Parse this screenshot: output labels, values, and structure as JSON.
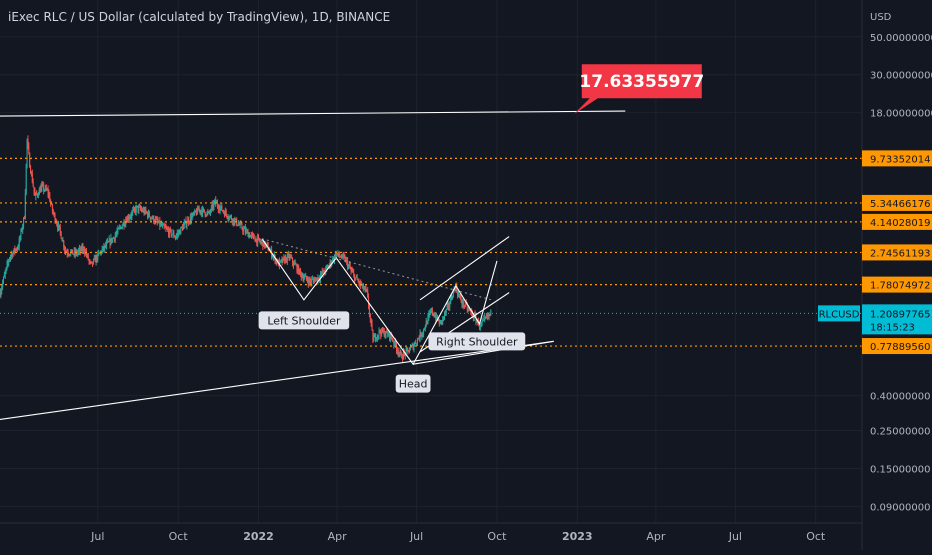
{
  "header": {
    "title": "iExec RLC / US Dollar (calculated by TradingView), 1D, BINANCE"
  },
  "colors": {
    "background": "#131722",
    "grid": "#1e222d",
    "up": "#26a69a",
    "down": "#ef5350",
    "level": "#ff9800",
    "trendline": "#ffffff",
    "callout": "#f23645",
    "price_tag": "#00bcd4",
    "axis_text": "#b2b5be"
  },
  "chart_data": {
    "type": "candlestick",
    "symbol": "RLCUSD",
    "timeframe": "1D",
    "exchange": "BINANCE",
    "y_scale": "log",
    "y_range": [
      0.072,
      82
    ],
    "y_axis_unit": "USD",
    "x_range": [
      "2021-03-11",
      "2023-11-23"
    ],
    "x_ticks": [
      {
        "date": "2021-07-01",
        "label": "Jul",
        "bold": false
      },
      {
        "date": "2021-10-01",
        "label": "Oct",
        "bold": false
      },
      {
        "date": "2022-01-01",
        "label": "2022",
        "bold": true
      },
      {
        "date": "2022-04-01",
        "label": "Apr",
        "bold": false
      },
      {
        "date": "2022-07-01",
        "label": "Jul",
        "bold": false
      },
      {
        "date": "2022-10-01",
        "label": "Oct",
        "bold": false
      },
      {
        "date": "2023-01-01",
        "label": "2023",
        "bold": true
      },
      {
        "date": "2023-04-01",
        "label": "Apr",
        "bold": false
      },
      {
        "date": "2023-07-01",
        "label": "Jul",
        "bold": false
      },
      {
        "date": "2023-10-01",
        "label": "Oct",
        "bold": false
      }
    ],
    "y_ticks": [
      {
        "value": 50,
        "label": "50.00000000"
      },
      {
        "value": 30,
        "label": "30.00000000"
      },
      {
        "value": 18,
        "label": "18.00000000"
      },
      {
        "value": 0.4,
        "label": "0.40000000"
      },
      {
        "value": 0.25,
        "label": "0.25000000"
      },
      {
        "value": 0.15,
        "label": "0.15000000"
      },
      {
        "value": 0.09,
        "label": "0.09000000"
      }
    ],
    "levels": [
      {
        "value": 9.73352014,
        "label": "9.73352014"
      },
      {
        "value": 5.34466176,
        "label": "5.34466176"
      },
      {
        "value": 4.14028019,
        "label": "4.14028019"
      },
      {
        "value": 2.74561193,
        "label": "2.74561193"
      },
      {
        "value": 1.78074972,
        "label": "1.78074972"
      },
      {
        "value": 0.7788956,
        "label": "0.77889560"
      }
    ],
    "current_price": {
      "symbol": "RLCUSD",
      "value": 1.20897765,
      "label": "1.20897765",
      "countdown": "18:15:23"
    },
    "price_path": [
      [
        "2021-03-11",
        1.6
      ],
      [
        "2021-03-22",
        2.6
      ],
      [
        "2021-04-01",
        3.0
      ],
      [
        "2021-04-08",
        4.5
      ],
      [
        "2021-04-11",
        12.5
      ],
      [
        "2021-04-14",
        9.0
      ],
      [
        "2021-04-20",
        5.8
      ],
      [
        "2021-04-28",
        6.6
      ],
      [
        "2021-05-05",
        6.2
      ],
      [
        "2021-05-10",
        4.8
      ],
      [
        "2021-05-19",
        3.6
      ],
      [
        "2021-05-25",
        2.8
      ],
      [
        "2021-06-05",
        2.7
      ],
      [
        "2021-06-15",
        2.9
      ],
      [
        "2021-06-23",
        2.3
      ],
      [
        "2021-07-05",
        2.8
      ],
      [
        "2021-07-20",
        3.4
      ],
      [
        "2021-08-01",
        4.2
      ],
      [
        "2021-08-15",
        5.0
      ],
      [
        "2021-08-25",
        4.7
      ],
      [
        "2021-09-05",
        4.2
      ],
      [
        "2021-09-15",
        3.8
      ],
      [
        "2021-09-28",
        3.4
      ],
      [
        "2021-10-10",
        4.1
      ],
      [
        "2021-10-25",
        4.9
      ],
      [
        "2021-11-05",
        4.6
      ],
      [
        "2021-11-12",
        5.4
      ],
      [
        "2021-11-25",
        4.6
      ],
      [
        "2021-12-05",
        4.2
      ],
      [
        "2021-12-18",
        3.6
      ],
      [
        "2021-12-28",
        3.3
      ],
      [
        "2022-01-10",
        3.0
      ],
      [
        "2022-01-24",
        2.35
      ],
      [
        "2022-02-05",
        2.6
      ],
      [
        "2022-02-20",
        2.0
      ],
      [
        "2022-03-01",
        1.85
      ],
      [
        "2022-03-10",
        1.95
      ],
      [
        "2022-03-20",
        2.2
      ],
      [
        "2022-03-31",
        2.7
      ],
      [
        "2022-04-10",
        2.5
      ],
      [
        "2022-04-20",
        2.0
      ],
      [
        "2022-05-05",
        1.6
      ],
      [
        "2022-05-12",
        0.85
      ],
      [
        "2022-05-20",
        0.95
      ],
      [
        "2022-06-01",
        0.9
      ],
      [
        "2022-06-13",
        0.68
      ],
      [
        "2022-06-20",
        0.72
      ],
      [
        "2022-06-27",
        0.78
      ],
      [
        "2022-07-08",
        0.95
      ],
      [
        "2022-07-18",
        1.25
      ],
      [
        "2022-07-28",
        1.05
      ],
      [
        "2022-08-07",
        1.35
      ],
      [
        "2022-08-14",
        1.75
      ],
      [
        "2022-08-20",
        1.45
      ],
      [
        "2022-08-27",
        1.32
      ],
      [
        "2022-09-05",
        1.15
      ],
      [
        "2022-09-12",
        1.02
      ],
      [
        "2022-09-18",
        1.12
      ],
      [
        "2022-09-24",
        1.21
      ]
    ],
    "candle_count": 560,
    "candle_width_days": 1,
    "annotations": [
      {
        "kind": "callout",
        "text": "17.63355977",
        "value": 17.63355977,
        "date": "2022-12-28"
      },
      {
        "kind": "label",
        "text": "Left Shoulder"
      },
      {
        "kind": "label",
        "text": "Head"
      },
      {
        "kind": "label",
        "text": "Right Shoulder"
      }
    ],
    "trendlines": [
      {
        "name": "resistance",
        "from": [
          "2021-03-11",
          17.2
        ],
        "to": [
          "2023-02-25",
          18.4
        ]
      },
      {
        "name": "long-support",
        "from": [
          "2021-03-11",
          0.29
        ],
        "to": [
          "2022-12-05",
          0.83
        ]
      },
      {
        "name": "neckline-support",
        "from": [
          "2022-06-27",
          0.61
        ],
        "to": [
          "2022-12-05",
          0.83
        ]
      },
      {
        "name": "hs-pattern",
        "points": [
          [
            "2022-01-05",
            3.3
          ],
          [
            "2022-02-22",
            1.45
          ],
          [
            "2022-03-31",
            2.55
          ],
          [
            "2022-06-27",
            0.61
          ],
          [
            "2022-08-15",
            1.75
          ],
          [
            "2022-09-11",
            1.05
          ],
          [
            "2022-10-01",
            2.45
          ]
        ]
      },
      {
        "name": "neckline",
        "dashed": true,
        "from": [
          "2022-01-05",
          3.3
        ],
        "to": [
          "2022-09-25",
          1.45
        ]
      },
      {
        "name": "channel-upper",
        "from": [
          "2022-07-05",
          1.45
        ],
        "to": [
          "2022-10-15",
          3.4
        ]
      },
      {
        "name": "channel-lower",
        "from": [
          "2022-07-05",
          0.72
        ],
        "to": [
          "2022-10-15",
          1.6
        ]
      }
    ]
  }
}
